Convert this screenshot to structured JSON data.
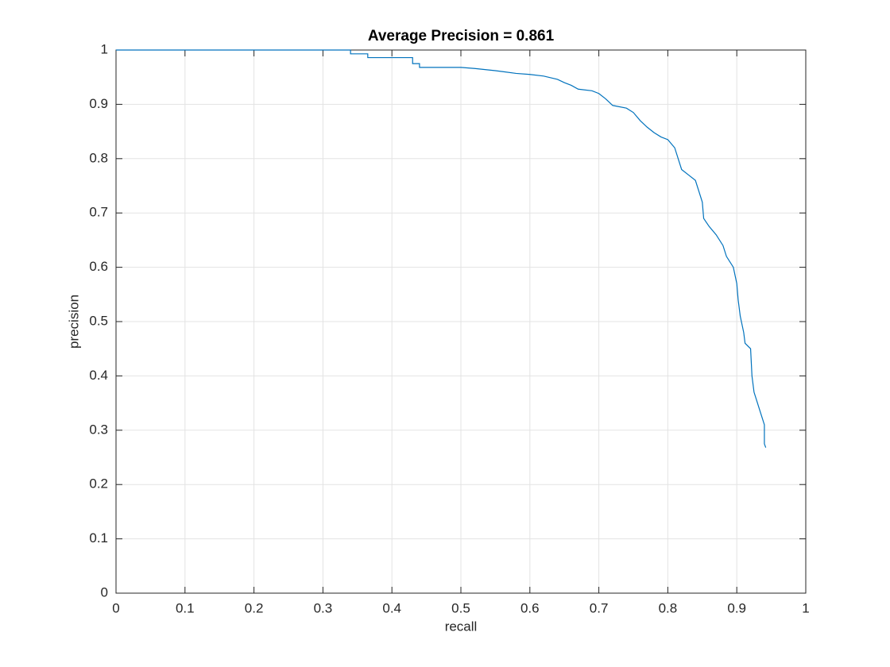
{
  "chart_data": {
    "type": "line",
    "title": "Average Precision = 0.861",
    "xlabel": "recall",
    "ylabel": "precision",
    "x": [
      0,
      0.34,
      0.34,
      0.365,
      0.365,
      0.43,
      0.43,
      0.44,
      0.44,
      0.5,
      0.52,
      0.55,
      0.58,
      0.6,
      0.62,
      0.64,
      0.65,
      0.66,
      0.67,
      0.69,
      0.7,
      0.71,
      0.72,
      0.74,
      0.75,
      0.76,
      0.77,
      0.78,
      0.79,
      0.8,
      0.81,
      0.815,
      0.82,
      0.83,
      0.84,
      0.845,
      0.85,
      0.852,
      0.86,
      0.87,
      0.88,
      0.885,
      0.895,
      0.9,
      0.902,
      0.905,
      0.91,
      0.912,
      0.92,
      0.922,
      0.925,
      0.93,
      0.935,
      0.94,
      0.94,
      0.942
    ],
    "series": [
      {
        "color": "#0072bd",
        "values": [
          1,
          1,
          0.993,
          0.993,
          0.986,
          0.986,
          0.975,
          0.975,
          0.968,
          0.968,
          0.966,
          0.962,
          0.957,
          0.955,
          0.952,
          0.946,
          0.94,
          0.935,
          0.928,
          0.925,
          0.92,
          0.91,
          0.898,
          0.893,
          0.885,
          0.87,
          0.858,
          0.848,
          0.84,
          0.835,
          0.82,
          0.8,
          0.78,
          0.77,
          0.76,
          0.74,
          0.72,
          0.69,
          0.675,
          0.66,
          0.64,
          0.62,
          0.6,
          0.57,
          0.54,
          0.51,
          0.48,
          0.46,
          0.45,
          0.4,
          0.37,
          0.35,
          0.33,
          0.31,
          0.275,
          0.268
        ]
      }
    ],
    "xlim": [
      0,
      1
    ],
    "ylim": [
      0,
      1
    ],
    "xticks": [
      0,
      0.1,
      0.2,
      0.3,
      0.4,
      0.5,
      0.6,
      0.7,
      0.8,
      0.9,
      1
    ],
    "yticks": [
      0,
      0.1,
      0.2,
      0.3,
      0.4,
      0.5,
      0.6,
      0.7,
      0.8,
      0.9,
      1
    ],
    "grid": true
  }
}
